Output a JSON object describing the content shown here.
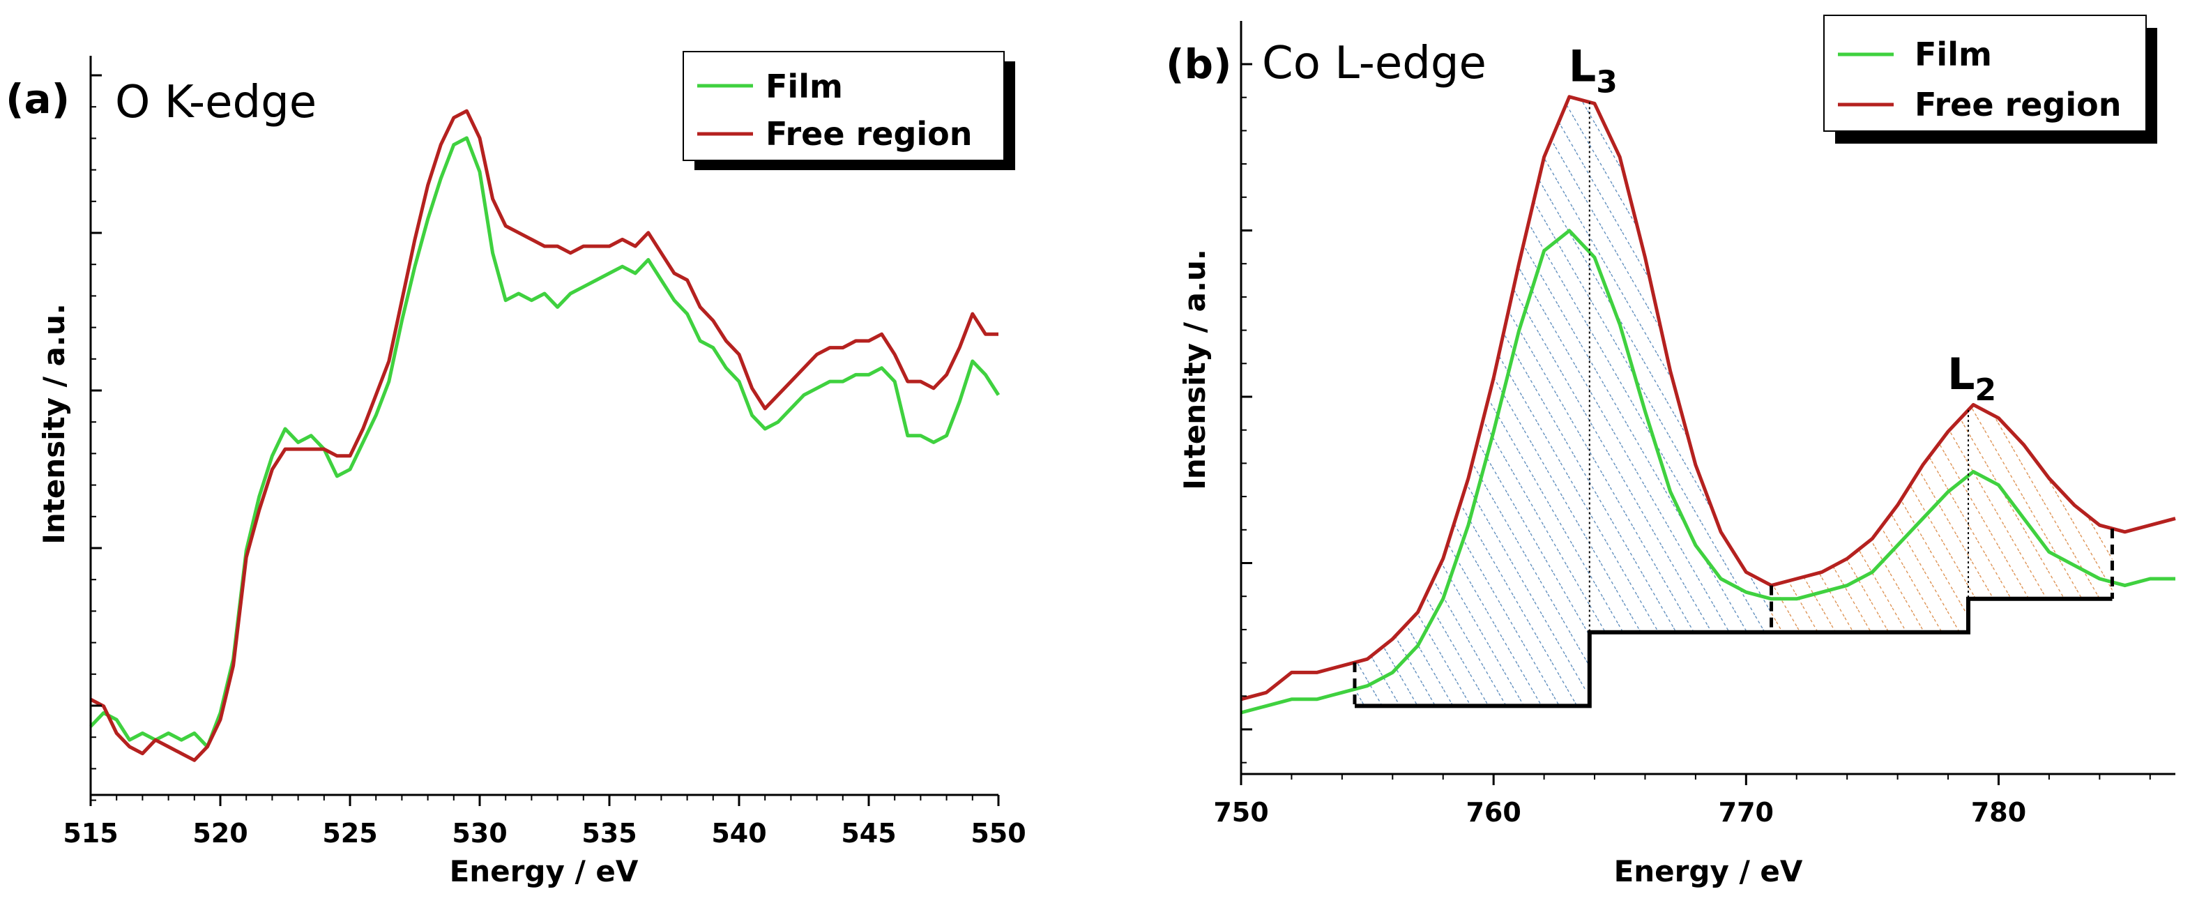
{
  "chart_data": [
    {
      "type": "line",
      "panel_label": "(a)",
      "title": "O K-edge",
      "xlabel": "Energy / eV",
      "ylabel": "Intensity / a.u.",
      "xlim": [
        515,
        550
      ],
      "ylim": [
        0,
        100
      ],
      "xticks": [
        "515",
        "520",
        "525",
        "530",
        "535",
        "540",
        "545",
        "550"
      ],
      "legend": {
        "placement": "top-right",
        "entries": [
          "Film",
          "Free region"
        ]
      },
      "series": [
        {
          "name": "Film",
          "color": "#3fd13f",
          "x": [
            515,
            515.5,
            516,
            516.5,
            517,
            517.5,
            518,
            518.5,
            519,
            519.5,
            520,
            520.5,
            521,
            521.5,
            522,
            522.5,
            523,
            523.5,
            524,
            524.5,
            525,
            525.5,
            526,
            526.5,
            527,
            527.5,
            528,
            528.5,
            529,
            529.5,
            530,
            530.5,
            531,
            531.5,
            532,
            532.5,
            533,
            533.5,
            534,
            534.5,
            535,
            535.5,
            536,
            536.5,
            537,
            537.5,
            538,
            538.5,
            539,
            539.5,
            540,
            540.5,
            541,
            541.5,
            542,
            542.5,
            543,
            543.5,
            544,
            544.5,
            545,
            545.5,
            546,
            546.5,
            547,
            547.5,
            548,
            548.5,
            549,
            549.5,
            550
          ],
          "values": [
            6,
            8,
            7,
            4,
            5,
            4,
            5,
            4,
            5,
            3,
            8,
            16,
            32,
            40,
            46,
            50,
            48,
            49,
            47,
            43,
            44,
            48,
            52,
            57,
            66,
            74,
            81,
            87,
            92,
            93,
            88,
            76,
            69,
            70,
            69,
            70,
            68,
            70,
            71,
            72,
            73,
            74,
            73,
            75,
            72,
            69,
            67,
            63,
            62,
            59,
            57,
            52,
            50,
            51,
            53,
            55,
            56,
            57,
            57,
            58,
            58,
            59,
            57,
            49,
            49,
            48,
            49,
            54,
            60,
            58,
            55
          ]
        },
        {
          "name": "Free region",
          "color": "#b5211f",
          "x": [
            515,
            515.5,
            516,
            516.5,
            517,
            517.5,
            518,
            518.5,
            519,
            519.5,
            520,
            520.5,
            521,
            521.5,
            522,
            522.5,
            523,
            523.5,
            524,
            524.5,
            525,
            525.5,
            526,
            526.5,
            527,
            527.5,
            528,
            528.5,
            529,
            529.5,
            530,
            530.5,
            531,
            531.5,
            532,
            532.5,
            533,
            533.5,
            534,
            534.5,
            535,
            535.5,
            536,
            536.5,
            537,
            537.5,
            538,
            538.5,
            539,
            539.5,
            540,
            540.5,
            541,
            541.5,
            542,
            542.5,
            543,
            543.5,
            544,
            544.5,
            545,
            545.5,
            546,
            546.5,
            547,
            547.5,
            548,
            548.5,
            549,
            549.5,
            550
          ],
          "values": [
            10,
            9,
            5,
            3,
            2,
            4,
            3,
            2,
            1,
            3,
            7,
            15,
            31,
            38,
            44,
            47,
            47,
            47,
            47,
            46,
            46,
            50,
            55,
            60,
            69,
            78,
            86,
            92,
            96,
            97,
            93,
            84,
            80,
            79,
            78,
            77,
            77,
            76,
            77,
            77,
            77,
            78,
            77,
            79,
            76,
            73,
            72,
            68,
            66,
            63,
            61,
            56,
            53,
            55,
            57,
            59,
            61,
            62,
            62,
            63,
            63,
            64,
            61,
            57,
            57,
            56,
            58,
            62,
            67,
            64,
            64
          ]
        }
      ]
    },
    {
      "type": "line",
      "panel_label": "(b)",
      "title": "Co L-edge",
      "xlabel": "Energy / eV",
      "ylabel": "Intensity / a.u.",
      "xlim": [
        750,
        787
      ],
      "ylim": [
        0,
        100
      ],
      "xticks": [
        "750",
        "760",
        "770",
        "780"
      ],
      "legend": {
        "placement": "top-right",
        "entries": [
          "Film",
          "Free region"
        ]
      },
      "annotations": [
        {
          "text": "L",
          "sub": "3",
          "x": 763.8
        },
        {
          "text": "L",
          "sub": "2",
          "x": 778.8
        }
      ],
      "integration_limits": [
        754.5,
        763.8,
        771.0,
        778.8,
        784.5
      ],
      "step_background": [
        {
          "x0": 754.5,
          "x1": 763.8,
          "y": 6
        },
        {
          "x0": 763.8,
          "x1": 778.8,
          "y": 17
        },
        {
          "x0": 778.8,
          "x1": 784.5,
          "y": 22
        }
      ],
      "series": [
        {
          "name": "Film",
          "color": "#3fd13f",
          "x": [
            750,
            751,
            752,
            753,
            754,
            755,
            756,
            757,
            758,
            759,
            760,
            761,
            762,
            763,
            764,
            765,
            766,
            767,
            768,
            769,
            770,
            771,
            772,
            773,
            774,
            775,
            776,
            777,
            778,
            779,
            780,
            781,
            782,
            783,
            784,
            785,
            786,
            787
          ],
          "values": [
            5,
            6,
            7,
            7,
            8,
            9,
            11,
            15,
            22,
            33,
            47,
            62,
            74,
            77,
            73,
            63,
            50,
            38,
            30,
            25,
            23,
            22,
            22,
            23,
            24,
            26,
            30,
            34,
            38,
            41,
            39,
            34,
            29,
            27,
            25,
            24,
            25,
            25
          ]
        },
        {
          "name": "Free region",
          "color": "#b5211f",
          "x": [
            750,
            751,
            752,
            753,
            754,
            755,
            756,
            757,
            758,
            759,
            760,
            761,
            762,
            763,
            764,
            765,
            766,
            767,
            768,
            769,
            770,
            771,
            772,
            773,
            774,
            775,
            776,
            777,
            778,
            779,
            780,
            781,
            782,
            783,
            784,
            785,
            786,
            787
          ],
          "values": [
            7,
            8,
            11,
            11,
            12,
            13,
            16,
            20,
            28,
            40,
            55,
            72,
            88,
            97,
            96,
            88,
            73,
            56,
            42,
            32,
            26,
            24,
            25,
            26,
            28,
            31,
            36,
            42,
            47,
            51,
            49,
            45,
            40,
            36,
            33,
            32,
            33,
            34
          ]
        }
      ]
    }
  ]
}
